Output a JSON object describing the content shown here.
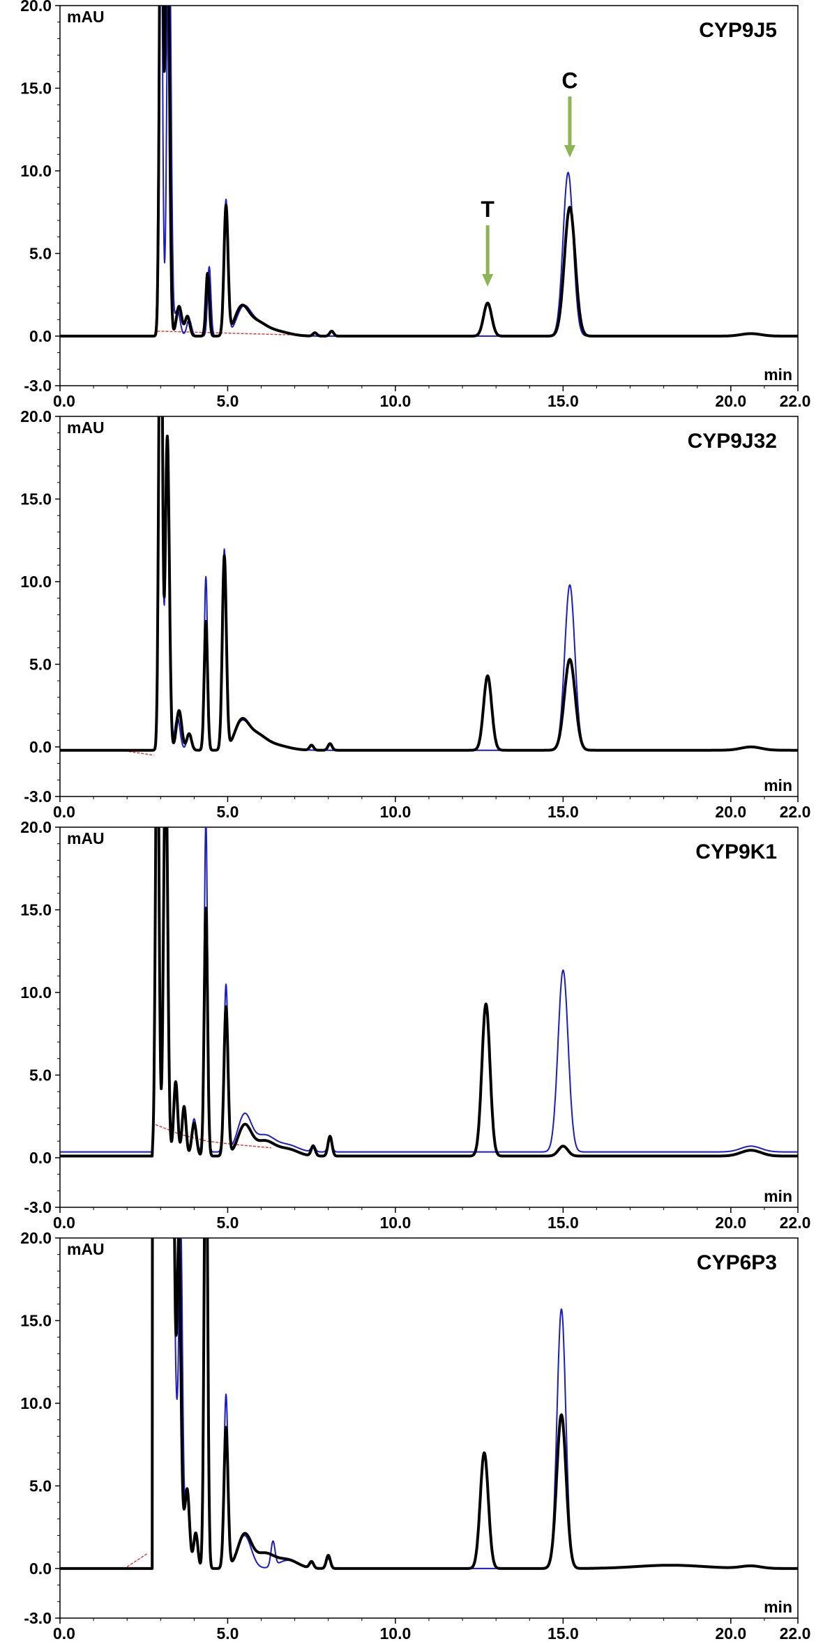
{
  "colors": {
    "sample_trace": "#000000",
    "control_trace": "#1a1ad0",
    "baseline": "#e03030",
    "arrow": "#8cb552",
    "frame": "#000000"
  },
  "chart_data": [
    {
      "type": "line",
      "title": "CYP9J5",
      "ylabel": "mAU",
      "xlabel": "min",
      "xlim": [
        0,
        22
      ],
      "ylim": [
        -3,
        20
      ],
      "x_ticks": [
        "0.0",
        "5.0",
        "10.0",
        "15.0",
        "20.0",
        "22.0"
      ],
      "y_ticks": [
        "20.0",
        "15.0",
        "10.0",
        "5.0",
        "0.0",
        "-3.0"
      ],
      "series": [
        {
          "role": "sample",
          "baseline": 0,
          "peaks": [
            [
              3.02,
              35,
              0.05
            ],
            [
              3.2,
              28,
              0.06
            ],
            [
              3.55,
              1.8,
              0.08
            ],
            [
              3.8,
              1.2,
              0.07
            ],
            [
              4.4,
              3.8,
              0.05
            ],
            [
              4.95,
              7.8,
              0.06
            ],
            [
              5.4,
              1.5,
              0.2
            ],
            [
              5.8,
              0.8,
              0.3
            ],
            [
              6.4,
              0.3,
              0.4
            ],
            [
              7.6,
              0.2,
              0.06
            ],
            [
              8.1,
              0.3,
              0.06
            ],
            [
              12.75,
              2.0,
              0.12
            ],
            [
              15.2,
              7.8,
              0.16
            ],
            [
              20.6,
              0.15,
              0.3
            ]
          ]
        },
        {
          "role": "control",
          "baseline": 0,
          "peaks": [
            [
              3.0,
              33,
              0.05
            ],
            [
              3.25,
              27,
              0.06
            ],
            [
              3.5,
              1.6,
              0.08
            ],
            [
              3.85,
              1.0,
              0.07
            ],
            [
              4.45,
              4.2,
              0.05
            ],
            [
              4.95,
              8.2,
              0.06
            ],
            [
              5.45,
              1.4,
              0.2
            ],
            [
              5.8,
              0.8,
              0.3
            ],
            [
              6.4,
              0.3,
              0.4
            ],
            [
              15.15,
              9.9,
              0.15
            ],
            [
              20.6,
              0.15,
              0.3
            ]
          ]
        },
        {
          "role": "baseline",
          "points": [
            [
              2.9,
              0.3
            ],
            [
              8.2,
              0.0
            ]
          ]
        }
      ],
      "annotations": [
        {
          "text": "T",
          "x": 12.75,
          "arrow_from": 6.7,
          "arrow_to": 3.0
        },
        {
          "text": "C",
          "x": 15.2,
          "arrow_from": 14.5,
          "arrow_to": 10.8
        }
      ]
    },
    {
      "type": "line",
      "title": "CYP9J32",
      "ylabel": "mAU",
      "xlabel": "min",
      "xlim": [
        0,
        22
      ],
      "ylim": [
        -3,
        20
      ],
      "x_ticks": [
        "0.0",
        "5.0",
        "10.0",
        "15.0",
        "20.0",
        "22.0"
      ],
      "y_ticks": [
        "20.0",
        "15.0",
        "10.0",
        "5.0",
        "0.0",
        "-3.0"
      ],
      "series": [
        {
          "role": "sample",
          "baseline": -0.2,
          "peaks": [
            [
              3.0,
              35,
              0.05
            ],
            [
              3.2,
              19,
              0.06
            ],
            [
              3.55,
              2.4,
              0.08
            ],
            [
              3.85,
              1.0,
              0.07
            ],
            [
              4.35,
              7.8,
              0.05
            ],
            [
              4.9,
              11.7,
              0.06
            ],
            [
              5.4,
              1.5,
              0.2
            ],
            [
              5.8,
              0.9,
              0.3
            ],
            [
              6.4,
              0.3,
              0.4
            ],
            [
              7.5,
              0.3,
              0.06
            ],
            [
              8.05,
              0.4,
              0.06
            ],
            [
              12.75,
              4.5,
              0.12
            ],
            [
              15.2,
              5.5,
              0.16
            ],
            [
              20.6,
              0.2,
              0.3
            ]
          ]
        },
        {
          "role": "control",
          "baseline": -0.2,
          "peaks": [
            [
              3.0,
              33,
              0.05
            ],
            [
              3.2,
              18,
              0.06
            ],
            [
              3.5,
              2.0,
              0.08
            ],
            [
              3.85,
              1.0,
              0.07
            ],
            [
              4.35,
              10.5,
              0.05
            ],
            [
              4.9,
              12.1,
              0.06
            ],
            [
              5.4,
              1.4,
              0.2
            ],
            [
              5.8,
              0.9,
              0.3
            ],
            [
              6.4,
              0.3,
              0.4
            ],
            [
              15.2,
              10.0,
              0.15
            ],
            [
              20.6,
              0.2,
              0.3
            ]
          ]
        },
        {
          "role": "baseline",
          "points": [
            [
              1.8,
              -0.2
            ],
            [
              2.8,
              -0.5
            ]
          ]
        }
      ],
      "annotations": []
    },
    {
      "type": "line",
      "title": "CYP9K1",
      "ylabel": "mAU",
      "xlabel": "min",
      "xlim": [
        0,
        22
      ],
      "ylim": [
        -3,
        20
      ],
      "x_ticks": [
        "0.0",
        "5.0",
        "10.0",
        "15.0",
        "20.0",
        "22.0"
      ],
      "y_ticks": [
        "20.0",
        "15.0",
        "10.0",
        "5.0",
        "0.0",
        "-3.0"
      ],
      "series": [
        {
          "role": "sample",
          "baseline": 0.1,
          "peaks": [
            [
              2.9,
              30,
              0.05
            ],
            [
              3.15,
              25,
              0.06
            ],
            [
              3.45,
              4.5,
              0.06
            ],
            [
              3.7,
              3.0,
              0.06
            ],
            [
              4.0,
              2.0,
              0.07
            ],
            [
              4.35,
              15.0,
              0.05
            ],
            [
              4.95,
              9.0,
              0.06
            ],
            [
              5.5,
              1.8,
              0.2
            ],
            [
              6.1,
              0.9,
              0.3
            ],
            [
              6.8,
              0.4,
              0.3
            ],
            [
              7.55,
              0.6,
              0.06
            ],
            [
              8.05,
              1.2,
              0.06
            ],
            [
              12.7,
              9.2,
              0.12
            ],
            [
              15.0,
              0.6,
              0.14
            ],
            [
              20.6,
              0.35,
              0.3
            ]
          ]
        },
        {
          "role": "control",
          "baseline": 0.35,
          "peaks": [
            [
              2.9,
              30,
              0.05
            ],
            [
              3.15,
              25,
              0.06
            ],
            [
              3.45,
              4.0,
              0.06
            ],
            [
              3.7,
              2.8,
              0.06
            ],
            [
              4.0,
              2.0,
              0.07
            ],
            [
              4.35,
              20,
              0.05
            ],
            [
              4.95,
              10.1,
              0.06
            ],
            [
              5.5,
              2.2,
              0.2
            ],
            [
              6.1,
              1.0,
              0.3
            ],
            [
              6.8,
              0.4,
              0.3
            ],
            [
              7.55,
              0.4,
              0.06
            ],
            [
              8.05,
              0.9,
              0.06
            ],
            [
              15.0,
              11.0,
              0.15
            ],
            [
              20.6,
              0.35,
              0.3
            ]
          ]
        },
        {
          "role": "baseline",
          "points": [
            [
              2.85,
              2.0
            ],
            [
              3.6,
              1.4
            ],
            [
              4.4,
              1.0
            ],
            [
              5.2,
              0.8
            ],
            [
              6.3,
              0.6
            ]
          ]
        }
      ],
      "annotations": []
    },
    {
      "type": "line",
      "title": "CYP6P3",
      "ylabel": "mAU",
      "xlabel": "min",
      "xlim": [
        0,
        22
      ],
      "ylim": [
        -3,
        20
      ],
      "x_ticks": [
        "0.0",
        "5.0",
        "10.0",
        "15.0",
        "20.0",
        "22.0"
      ],
      "y_ticks": [
        "20.0",
        "15.0",
        "10.0",
        "5.0",
        "0.0",
        "-3.0"
      ],
      "series": [
        {
          "role": "sample",
          "baseline": 0,
          "peaks": [
            [
              2.9,
              35,
              0.35
            ],
            [
              3.35,
              18,
              0.05
            ],
            [
              3.55,
              14,
              0.05
            ],
            [
              3.8,
              3.5,
              0.06
            ],
            [
              4.05,
              2.0,
              0.06
            ],
            [
              4.35,
              30,
              0.05
            ],
            [
              4.95,
              8.5,
              0.06
            ],
            [
              5.5,
              2.0,
              0.2
            ],
            [
              6.1,
              0.9,
              0.3
            ],
            [
              6.8,
              0.5,
              0.3
            ],
            [
              7.5,
              0.4,
              0.06
            ],
            [
              8.0,
              0.8,
              0.06
            ],
            [
              12.65,
              7.0,
              0.12
            ],
            [
              14.95,
              9.3,
              0.14
            ],
            [
              18.2,
              0.2,
              1.0
            ],
            [
              20.6,
              0.15,
              0.3
            ]
          ]
        },
        {
          "role": "control",
          "baseline": 0,
          "peaks": [
            [
              2.9,
              35,
              0.35
            ],
            [
              3.35,
              16,
              0.05
            ],
            [
              3.6,
              16.5,
              0.05
            ],
            [
              3.8,
              3.0,
              0.06
            ],
            [
              4.05,
              2.0,
              0.06
            ],
            [
              4.35,
              28,
              0.05
            ],
            [
              4.95,
              10.5,
              0.06
            ],
            [
              5.5,
              2.0,
              0.2
            ],
            [
              6.35,
              1.5,
              0.06
            ],
            [
              6.8,
              0.5,
              0.3
            ],
            [
              7.5,
              0.3,
              0.06
            ],
            [
              8.0,
              0.6,
              0.06
            ],
            [
              14.95,
              15.7,
              0.13
            ],
            [
              18.2,
              0.2,
              1.0
            ],
            [
              20.6,
              0.15,
              0.3
            ]
          ]
        },
        {
          "role": "baseline",
          "points": [
            [
              2.0,
              0.1
            ],
            [
              2.6,
              0.9
            ]
          ]
        }
      ],
      "annotations": []
    }
  ]
}
